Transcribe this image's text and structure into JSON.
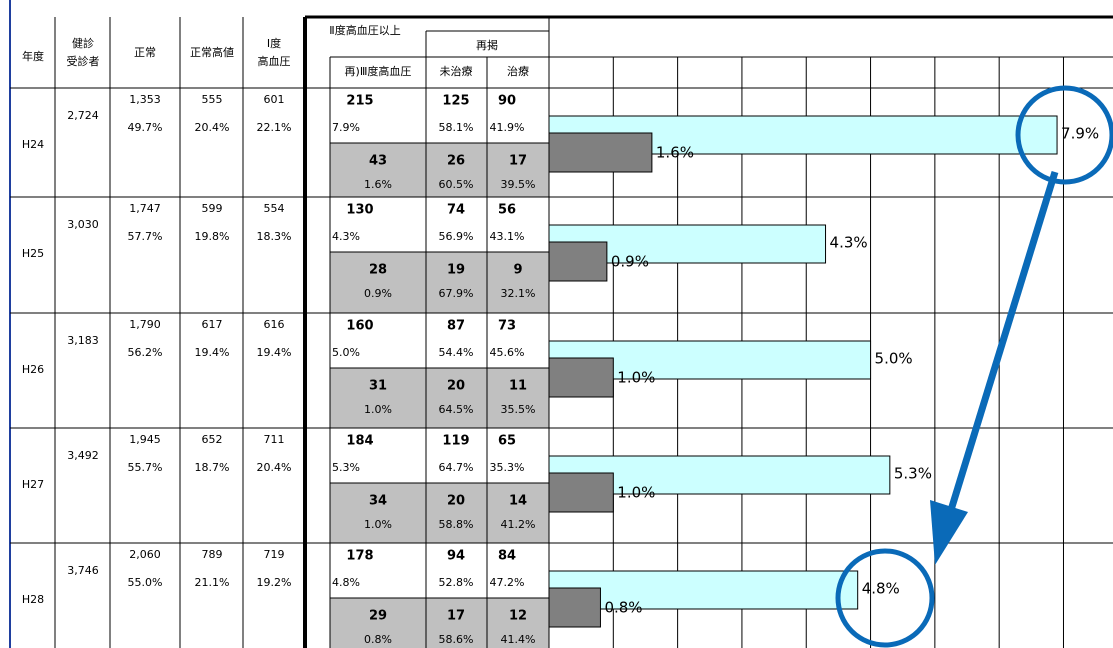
{
  "header": {
    "year": "年度",
    "examinees": [
      "健診",
      "受診者"
    ],
    "normal": "正常",
    "high_normal": "正常高値",
    "grade1": [
      "I度",
      "高血圧"
    ],
    "grade2plus": "Ⅱ度高血圧以上",
    "recount": "再掲",
    "grade3": "再)Ⅲ度高血圧",
    "untreated": "未治療",
    "treated": "治療"
  },
  "rows": [
    {
      "year": "H24",
      "examinees": "2,724",
      "normal": [
        "1,353",
        "49.7%"
      ],
      "high_normal": [
        "555",
        "20.4%"
      ],
      "grade1": [
        "601",
        "22.1%"
      ],
      "grade2plus": [
        "215",
        "7.9%"
      ],
      "untreated": [
        "125",
        "58.1%"
      ],
      "treated": [
        "90",
        "41.9%"
      ],
      "grade3": [
        "43",
        "1.6%"
      ],
      "g3_untreated": [
        "26",
        "60.5%"
      ],
      "g3_treated": [
        "17",
        "39.5%"
      ]
    },
    {
      "year": "H25",
      "examinees": "3,030",
      "normal": [
        "1,747",
        "57.7%"
      ],
      "high_normal": [
        "599",
        "19.8%"
      ],
      "grade1": [
        "554",
        "18.3%"
      ],
      "grade2plus": [
        "130",
        "4.3%"
      ],
      "untreated": [
        "74",
        "56.9%"
      ],
      "treated": [
        "56",
        "43.1%"
      ],
      "grade3": [
        "28",
        "0.9%"
      ],
      "g3_untreated": [
        "19",
        "67.9%"
      ],
      "g3_treated": [
        "9",
        "32.1%"
      ]
    },
    {
      "year": "H26",
      "examinees": "3,183",
      "normal": [
        "1,790",
        "56.2%"
      ],
      "high_normal": [
        "617",
        "19.4%"
      ],
      "grade1": [
        "616",
        "19.4%"
      ],
      "grade2plus": [
        "160",
        "5.0%"
      ],
      "untreated": [
        "87",
        "54.4%"
      ],
      "treated": [
        "73",
        "45.6%"
      ],
      "grade3": [
        "31",
        "1.0%"
      ],
      "g3_untreated": [
        "20",
        "64.5%"
      ],
      "g3_treated": [
        "11",
        "35.5%"
      ]
    },
    {
      "year": "H27",
      "examinees": "3,492",
      "normal": [
        "1,945",
        "55.7%"
      ],
      "high_normal": [
        "652",
        "18.7%"
      ],
      "grade1": [
        "711",
        "20.4%"
      ],
      "grade2plus": [
        "184",
        "5.3%"
      ],
      "untreated": [
        "119",
        "64.7%"
      ],
      "treated": [
        "65",
        "35.3%"
      ],
      "grade3": [
        "34",
        "1.0%"
      ],
      "g3_untreated": [
        "20",
        "58.8%"
      ],
      "g3_treated": [
        "14",
        "41.2%"
      ]
    },
    {
      "year": "H28",
      "examinees": "3,746",
      "normal": [
        "2,060",
        "55.0%"
      ],
      "high_normal": [
        "789",
        "21.1%"
      ],
      "grade1": [
        "719",
        "19.2%"
      ],
      "grade2plus": [
        "178",
        "4.8%"
      ],
      "untreated": [
        "94",
        "52.8%"
      ],
      "treated": [
        "84",
        "47.2%"
      ],
      "grade3": [
        "29",
        "0.8%"
      ],
      "g3_untreated": [
        "17",
        "58.6%"
      ],
      "g3_treated": [
        "12",
        "41.4%"
      ]
    }
  ],
  "chart": {
    "type": "bar",
    "xlim": [
      0,
      8.77
    ],
    "xticks": [
      0,
      1,
      2,
      3,
      4,
      5,
      6,
      7,
      8
    ],
    "series": [
      {
        "color": "#ccffff",
        "values": [
          7.9,
          4.3,
          5.0,
          5.3,
          4.8
        ],
        "value_labels": [
          "7.9%",
          "4.3%",
          "5.0%",
          "5.3%",
          "4.8%"
        ]
      },
      {
        "color": "#808080",
        "values": [
          1.6,
          0.9,
          1.0,
          1.0,
          0.8
        ],
        "value_labels": [
          "1.6%",
          "0.9%",
          "1.0%",
          "1.0%",
          "0.8%"
        ]
      }
    ]
  }
}
